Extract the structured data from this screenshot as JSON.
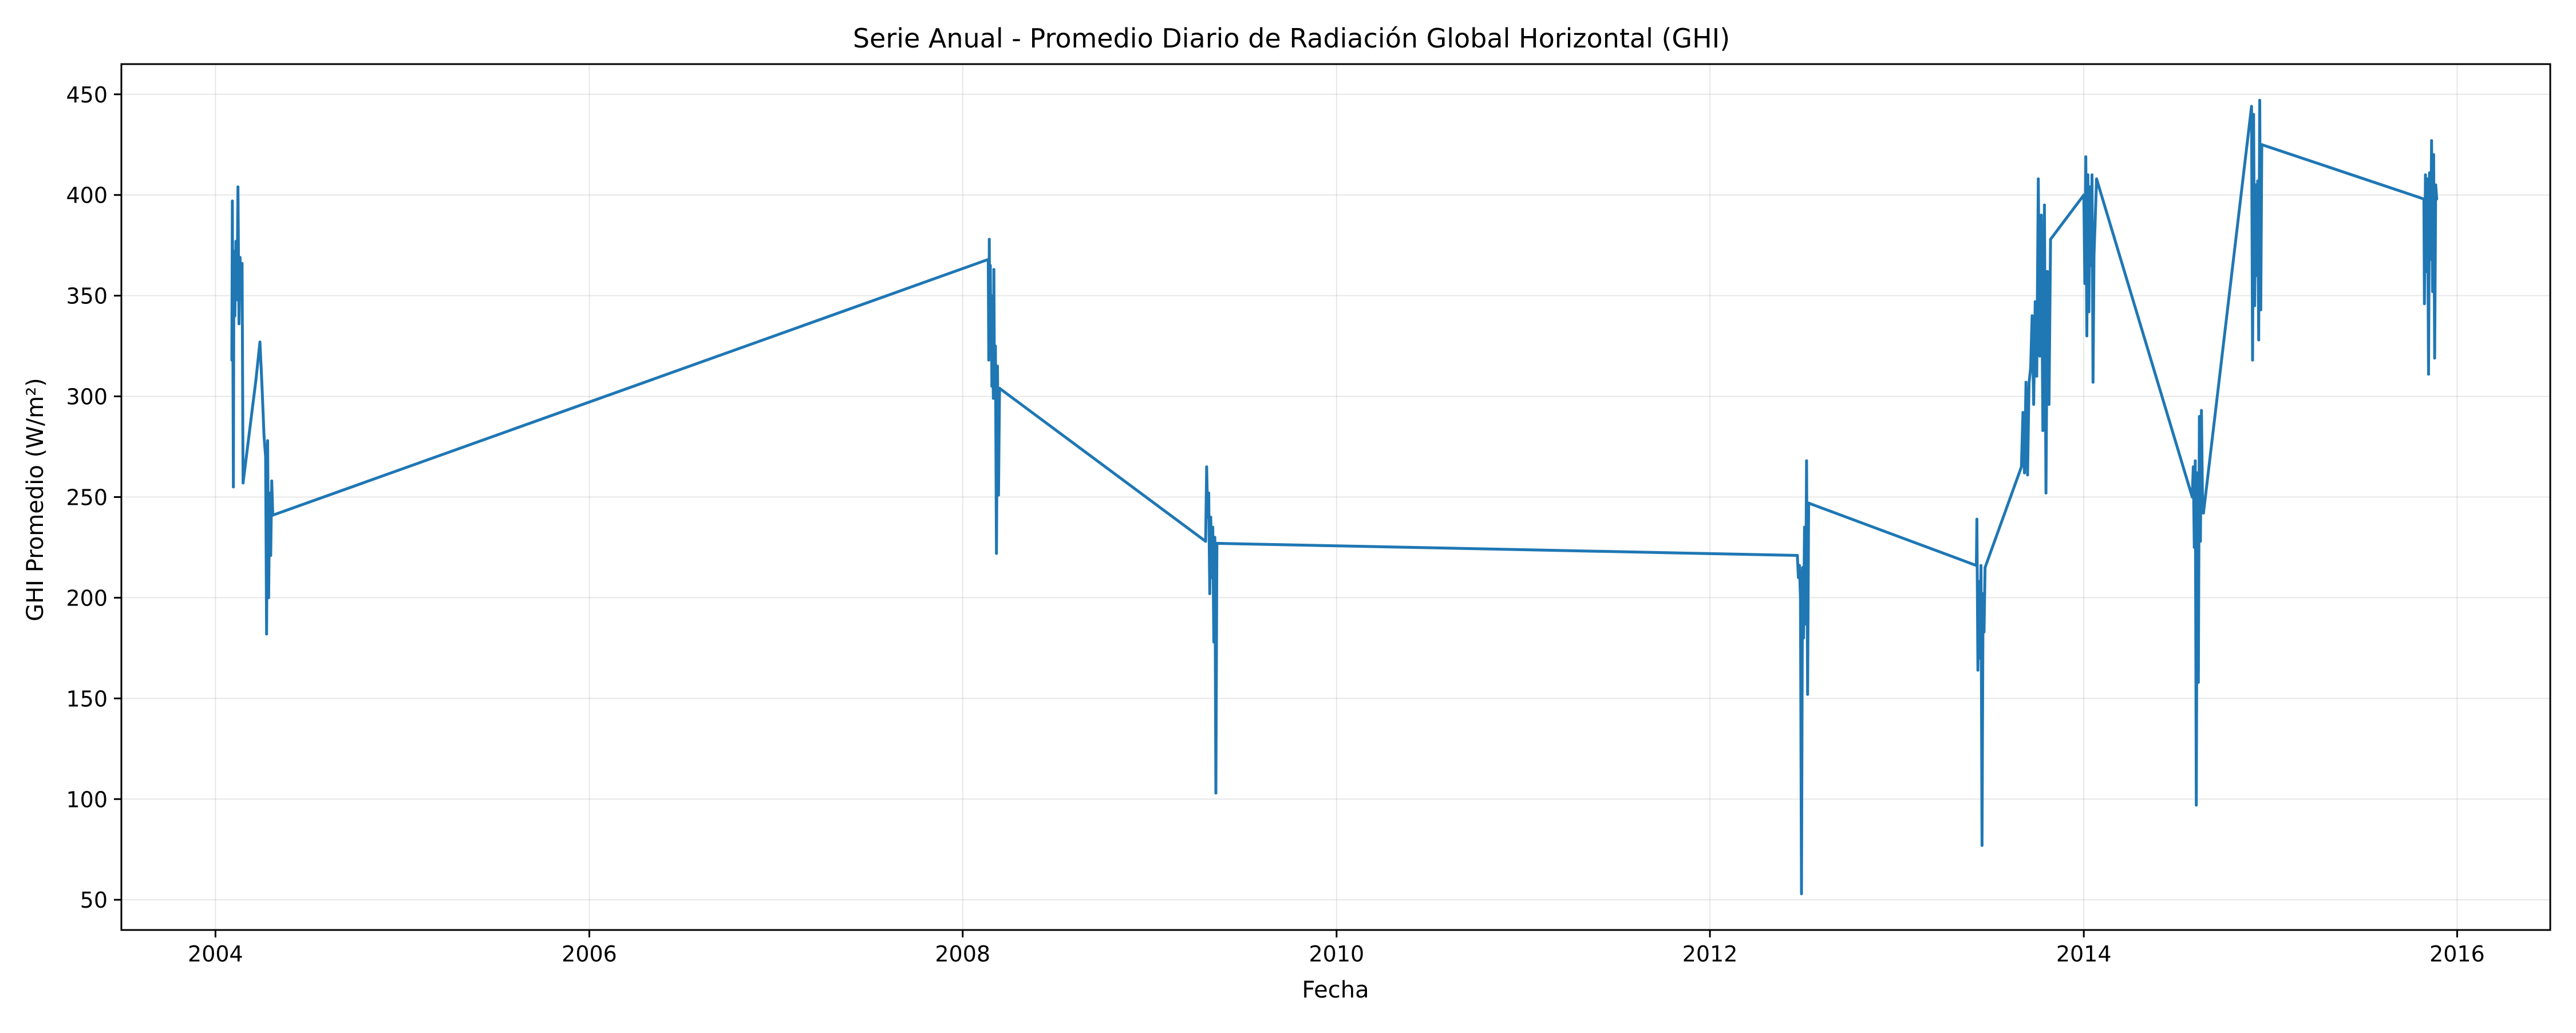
{
  "chart_data": {
    "type": "line",
    "title": "Serie Anual - Promedio Diario de Radiación Global Horizontal (GHI)",
    "xlabel": "Fecha",
    "ylabel": "GHI Promedio (W/m²)",
    "x_axis_type": "date",
    "xlim": [
      "2003-07-01",
      "2016-07-01"
    ],
    "ylim": [
      35,
      465
    ],
    "x_ticks": [
      {
        "date": "2004-01-01",
        "label": "2004"
      },
      {
        "date": "2006-01-01",
        "label": "2006"
      },
      {
        "date": "2008-01-01",
        "label": "2008"
      },
      {
        "date": "2010-01-01",
        "label": "2010"
      },
      {
        "date": "2012-01-01",
        "label": "2012"
      },
      {
        "date": "2014-01-01",
        "label": "2014"
      },
      {
        "date": "2016-01-01",
        "label": "2016"
      }
    ],
    "y_ticks": [
      50,
      100,
      150,
      200,
      250,
      300,
      350,
      400,
      450
    ],
    "grid": true,
    "legend": "none",
    "series": [
      {
        "color": "#1f77b4",
        "points": [
          [
            "2004-02-02",
            318
          ],
          [
            "2004-02-03",
            397
          ],
          [
            "2004-02-04",
            326
          ],
          [
            "2004-02-05",
            255
          ],
          [
            "2004-02-06",
            372
          ],
          [
            "2004-02-08",
            340
          ],
          [
            "2004-02-10",
            377
          ],
          [
            "2004-02-12",
            348
          ],
          [
            "2004-02-14",
            404
          ],
          [
            "2004-02-16",
            336
          ],
          [
            "2004-02-18",
            369
          ],
          [
            "2004-02-20",
            352
          ],
          [
            "2004-02-22",
            366
          ],
          [
            "2004-02-24",
            257
          ],
          [
            "2004-03-20",
            308
          ],
          [
            "2004-03-28",
            327
          ],
          [
            "2004-04-01",
            305
          ],
          [
            "2004-04-05",
            280
          ],
          [
            "2004-04-08",
            270
          ],
          [
            "2004-04-10",
            182
          ],
          [
            "2004-04-12",
            278
          ],
          [
            "2004-04-14",
            200
          ],
          [
            "2004-04-16",
            252
          ],
          [
            "2004-04-18",
            221
          ],
          [
            "2004-04-20",
            258
          ],
          [
            "2004-04-22",
            241
          ],
          [
            "2008-02-20",
            368
          ],
          [
            "2008-02-21",
            318
          ],
          [
            "2008-02-22",
            378
          ],
          [
            "2008-02-23",
            325
          ],
          [
            "2008-02-24",
            365
          ],
          [
            "2008-02-25",
            320
          ],
          [
            "2008-02-26",
            350
          ],
          [
            "2008-02-27",
            305
          ],
          [
            "2008-02-28",
            340
          ],
          [
            "2008-03-01",
            299
          ],
          [
            "2008-03-02",
            363
          ],
          [
            "2008-03-03",
            310
          ],
          [
            "2008-03-05",
            325
          ],
          [
            "2008-03-07",
            222
          ],
          [
            "2008-03-09",
            315
          ],
          [
            "2008-03-11",
            251
          ],
          [
            "2008-03-13",
            304
          ],
          [
            "2009-04-20",
            228
          ],
          [
            "2009-04-22",
            265
          ],
          [
            "2009-04-24",
            240
          ],
          [
            "2009-04-26",
            252
          ],
          [
            "2009-04-28",
            202
          ],
          [
            "2009-04-30",
            240
          ],
          [
            "2009-05-02",
            210
          ],
          [
            "2009-05-04",
            235
          ],
          [
            "2009-05-06",
            178
          ],
          [
            "2009-05-08",
            230
          ],
          [
            "2009-05-10",
            103
          ],
          [
            "2009-05-12",
            227
          ],
          [
            "2012-06-20",
            221
          ],
          [
            "2012-06-22",
            210
          ],
          [
            "2012-06-24",
            216
          ],
          [
            "2012-06-26",
            200
          ],
          [
            "2012-06-28",
            53
          ],
          [
            "2012-06-30",
            215
          ],
          [
            "2012-07-02",
            180
          ],
          [
            "2012-07-04",
            235
          ],
          [
            "2012-07-06",
            187
          ],
          [
            "2012-07-08",
            268
          ],
          [
            "2012-07-10",
            152
          ],
          [
            "2012-07-12",
            247
          ],
          [
            "2013-06-05",
            216
          ],
          [
            "2013-06-06",
            239
          ],
          [
            "2013-06-08",
            164
          ],
          [
            "2013-06-10",
            208
          ],
          [
            "2013-06-12",
            170
          ],
          [
            "2013-06-14",
            216
          ],
          [
            "2013-06-16",
            77
          ],
          [
            "2013-06-18",
            202
          ],
          [
            "2013-06-20",
            183
          ],
          [
            "2013-06-22",
            215
          ],
          [
            "2013-09-01",
            265
          ],
          [
            "2013-09-04",
            292
          ],
          [
            "2013-09-07",
            262
          ],
          [
            "2013-09-10",
            307
          ],
          [
            "2013-09-13",
            261
          ],
          [
            "2013-09-16",
            307
          ],
          [
            "2013-09-19",
            314
          ],
          [
            "2013-09-22",
            340
          ],
          [
            "2013-09-25",
            296
          ],
          [
            "2013-09-28",
            347
          ],
          [
            "2013-10-01",
            310
          ],
          [
            "2013-10-04",
            408
          ],
          [
            "2013-10-07",
            320
          ],
          [
            "2013-10-10",
            390
          ],
          [
            "2013-10-13",
            283
          ],
          [
            "2013-10-16",
            395
          ],
          [
            "2013-10-19",
            252
          ],
          [
            "2013-10-22",
            362
          ],
          [
            "2013-10-25",
            296
          ],
          [
            "2013-10-28",
            378
          ],
          [
            "2014-01-01",
            400
          ],
          [
            "2014-01-03",
            356
          ],
          [
            "2014-01-05",
            419
          ],
          [
            "2014-01-07",
            330
          ],
          [
            "2014-01-09",
            410
          ],
          [
            "2014-01-11",
            342
          ],
          [
            "2014-01-13",
            404
          ],
          [
            "2014-01-15",
            365
          ],
          [
            "2014-01-17",
            410
          ],
          [
            "2014-01-19",
            307
          ],
          [
            "2014-01-21",
            370
          ],
          [
            "2014-01-23",
            385
          ],
          [
            "2014-01-26",
            408
          ],
          [
            "2014-08-01",
            250
          ],
          [
            "2014-08-03",
            265
          ],
          [
            "2014-08-05",
            225
          ],
          [
            "2014-08-07",
            268
          ],
          [
            "2014-08-09",
            97
          ],
          [
            "2014-08-11",
            262
          ],
          [
            "2014-08-13",
            158
          ],
          [
            "2014-08-15",
            290
          ],
          [
            "2014-08-17",
            228
          ],
          [
            "2014-08-19",
            293
          ],
          [
            "2014-08-21",
            250
          ],
          [
            "2014-08-23",
            242
          ],
          [
            "2014-11-25",
            444
          ],
          [
            "2014-11-27",
            318
          ],
          [
            "2014-11-29",
            440
          ],
          [
            "2014-12-01",
            345
          ],
          [
            "2014-12-03",
            405
          ],
          [
            "2014-12-05",
            360
          ],
          [
            "2014-12-07",
            407
          ],
          [
            "2014-12-09",
            328
          ],
          [
            "2014-12-11",
            447
          ],
          [
            "2014-12-13",
            343
          ],
          [
            "2014-12-15",
            425
          ],
          [
            "2015-10-28",
            398
          ],
          [
            "2015-10-29",
            346
          ],
          [
            "2015-10-31",
            410
          ],
          [
            "2015-11-02",
            362
          ],
          [
            "2015-11-04",
            408
          ],
          [
            "2015-11-06",
            311
          ],
          [
            "2015-11-08",
            411
          ],
          [
            "2015-11-10",
            368
          ],
          [
            "2015-11-12",
            427
          ],
          [
            "2015-11-14",
            352
          ],
          [
            "2015-11-16",
            420
          ],
          [
            "2015-11-18",
            319
          ],
          [
            "2015-11-20",
            405
          ],
          [
            "2015-11-22",
            398
          ]
        ]
      }
    ]
  }
}
